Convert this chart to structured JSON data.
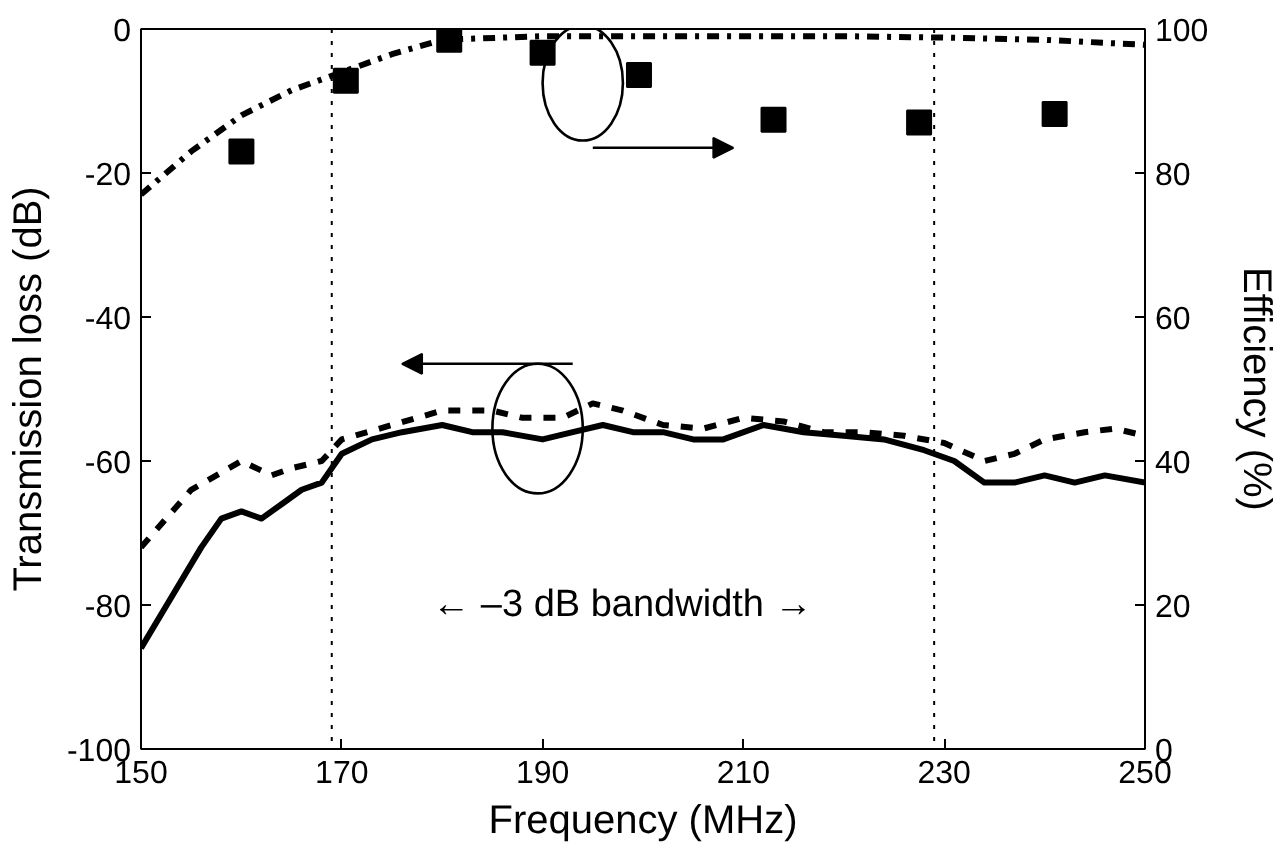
{
  "chart_data": {
    "type": "line",
    "xlabel": "Frequency (MHz)",
    "ylabel": "Transmission loss (dB)",
    "y2label": "Efficiency (%)",
    "xlim": [
      150,
      250
    ],
    "xticks": [
      150,
      170,
      190,
      210,
      230,
      250
    ],
    "ylim": [
      -100,
      0
    ],
    "yticks": [
      -100,
      -80,
      -60,
      -40,
      -20,
      0
    ],
    "y2lim": [
      0,
      100
    ],
    "y2ticks": [
      0,
      20,
      40,
      60,
      80,
      100
    ],
    "grid": false,
    "series": [
      {
        "line_style": "dashed",
        "color": "#000000",
        "x": [
          150,
          155,
          160,
          163,
          165,
          168,
          170,
          175,
          180,
          185,
          188,
          192,
          195,
          198,
          202,
          206,
          210,
          214,
          218,
          222,
          226,
          230,
          234,
          237,
          240,
          244,
          247,
          250
        ],
        "values": [
          -72,
          -64,
          -60,
          -62,
          -61,
          -60,
          -57,
          -55,
          -53,
          -53,
          -54,
          -54,
          -52,
          -53,
          -55,
          -55.5,
          -54,
          -54.5,
          -56,
          -56,
          -56.5,
          -57.5,
          -60,
          -59,
          -57,
          -56,
          -55.5,
          -56.5
        ]
      },
      {
        "line_style": "solid",
        "color": "#000000",
        "x": [
          150,
          153,
          156,
          158,
          160,
          162,
          164,
          166,
          168,
          170,
          173,
          176,
          180,
          183,
          186,
          190,
          193,
          196,
          199,
          202,
          205,
          208,
          212,
          216,
          220,
          224,
          228,
          231,
          234,
          237,
          240,
          243,
          246,
          250
        ],
        "values": [
          -86,
          -79,
          -72,
          -68,
          -67,
          -68,
          -66,
          -64,
          -63,
          -59,
          -57,
          -56,
          -55,
          -56,
          -56,
          -57,
          -56,
          -55,
          -56,
          -56,
          -57,
          -57,
          -55,
          -56,
          -56.5,
          -57,
          -58.5,
          -60,
          -63,
          -63,
          -62,
          -63,
          -62,
          -63
        ]
      },
      {
        "line_style": "dashdot",
        "axis": "y2",
        "color": "#000000",
        "x": [
          150,
          155,
          160,
          165,
          170,
          175,
          180,
          190,
          200,
          210,
          220,
          230,
          240,
          250
        ],
        "values": [
          77,
          83,
          88,
          91.5,
          94,
          96.5,
          98.5,
          99,
          99,
          99,
          99,
          98.8,
          98.5,
          97.8
        ]
      },
      {
        "type": "scatter",
        "marker": "square",
        "axis": "y2",
        "color": "#000000",
        "x": [
          160,
          170.4,
          180.7,
          190,
          199.6,
          213,
          227.5,
          241
        ],
        "values": [
          83,
          92.8,
          98.5,
          96.7,
          93.6,
          87.4,
          87,
          88.2
        ]
      }
    ],
    "ref_lines": [
      {
        "axis": "x",
        "value": 169,
        "line_style": "dotted",
        "color": "#000000"
      },
      {
        "axis": "x",
        "value": 229,
        "line_style": "dotted",
        "color": "#000000"
      }
    ],
    "annotations": [
      "←  –3 dB bandwidth  →"
    ]
  }
}
